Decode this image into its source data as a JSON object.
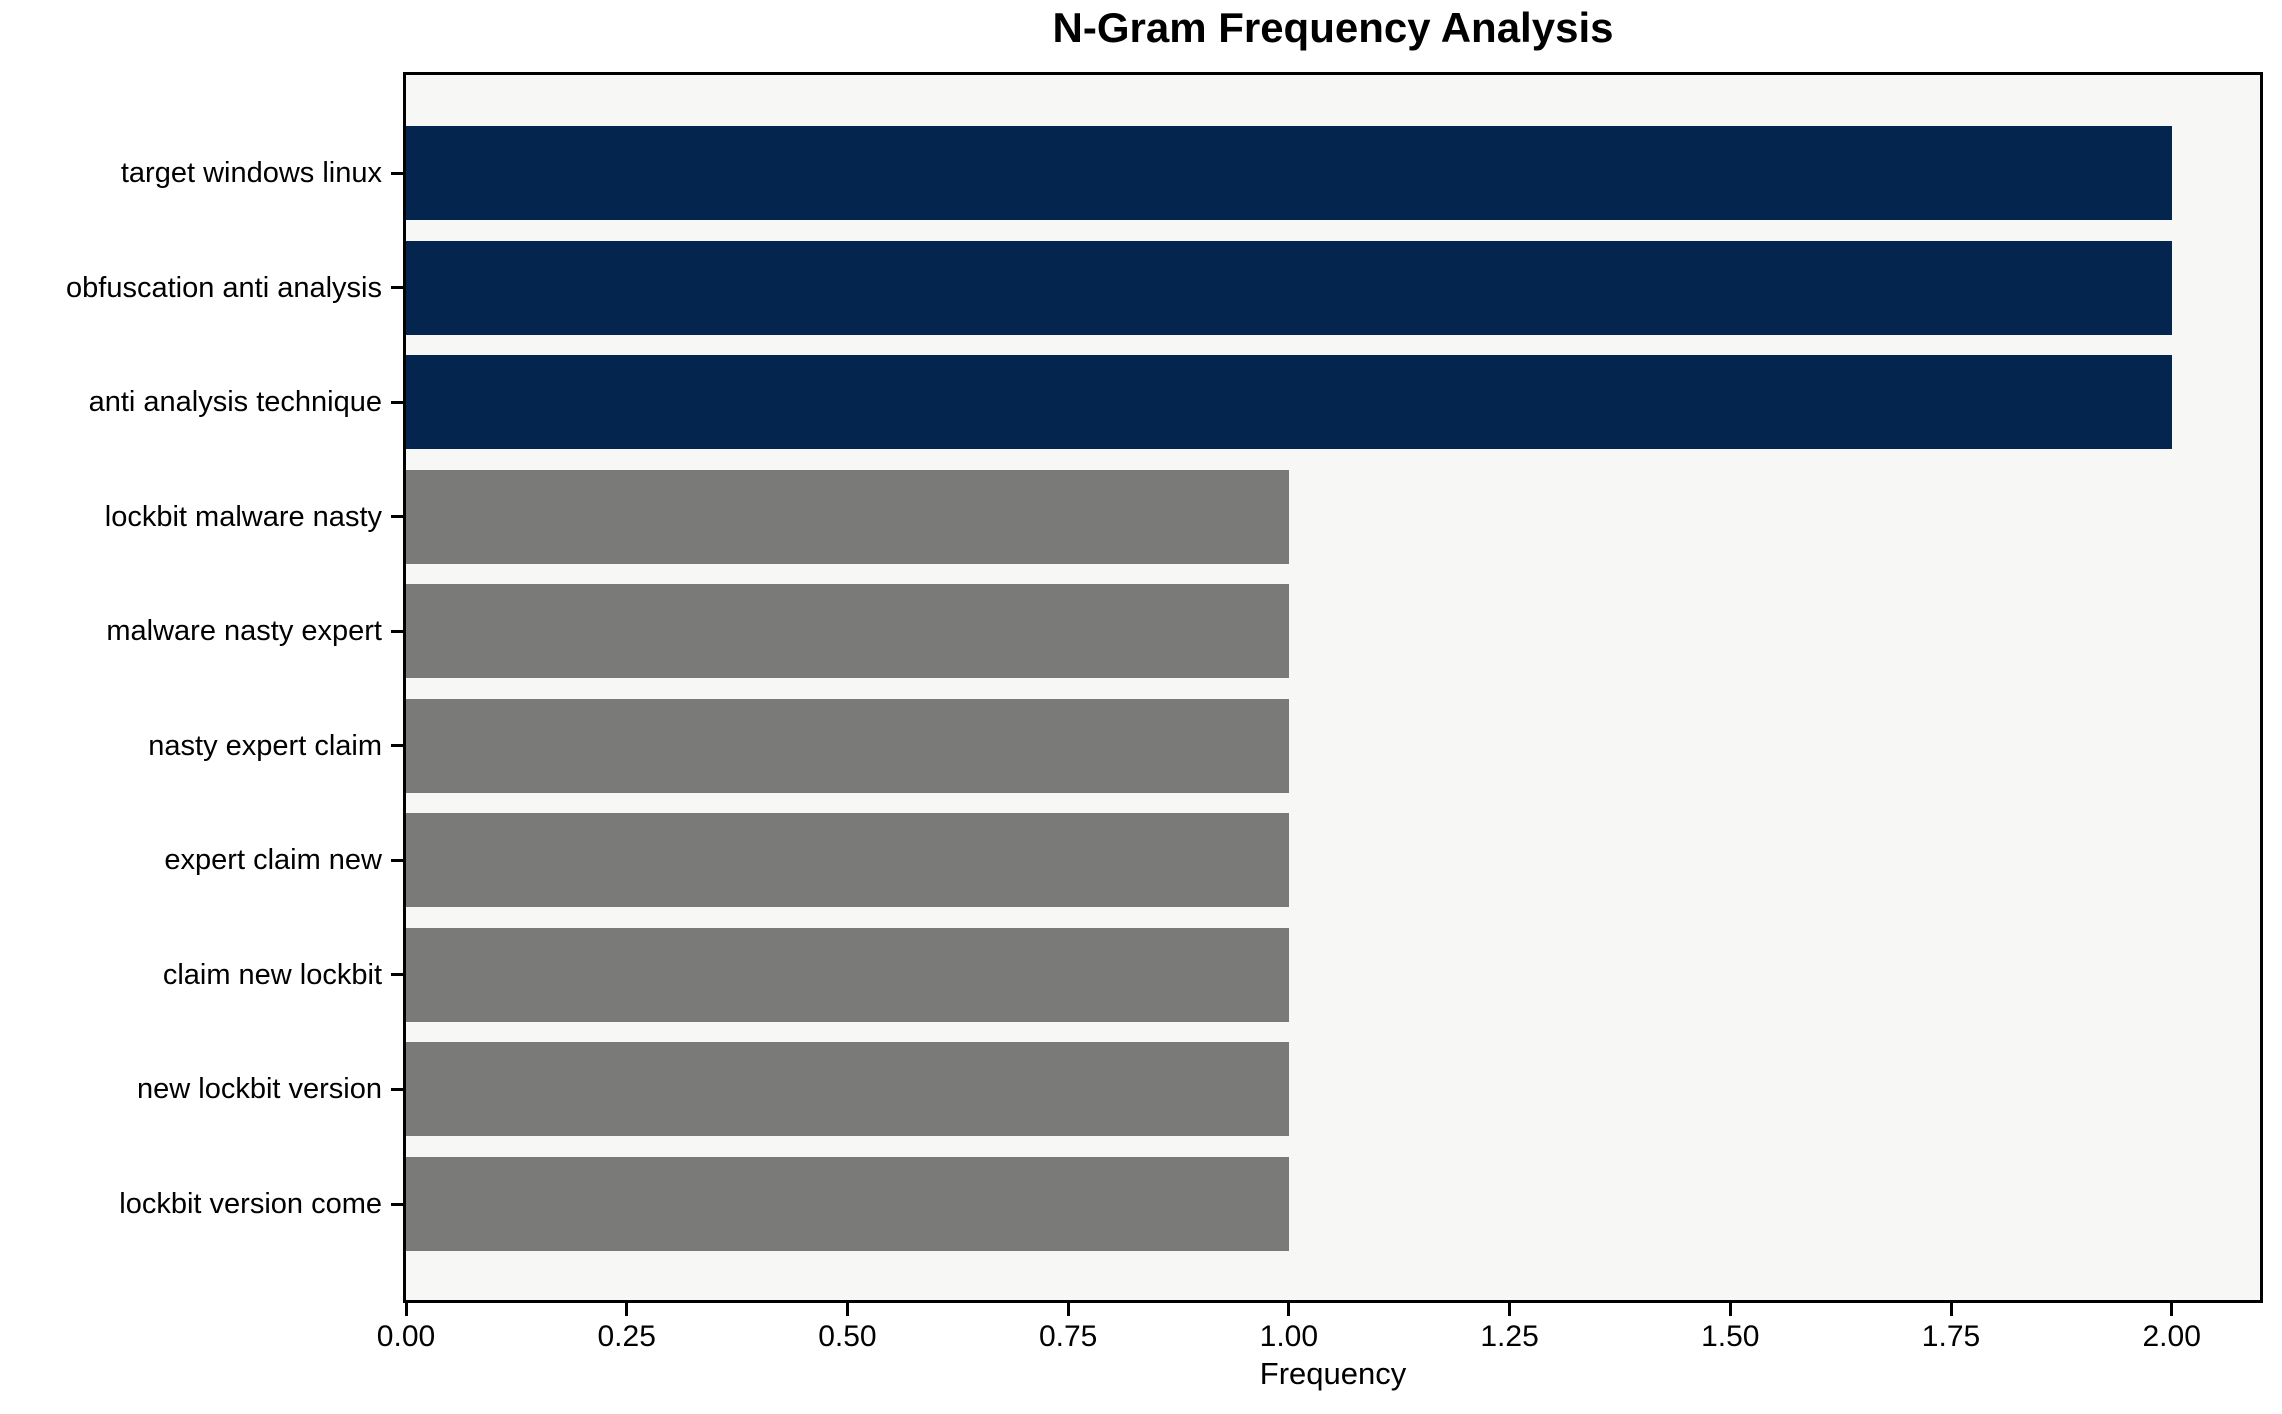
{
  "chart_data": {
    "type": "bar",
    "orientation": "horizontal",
    "title": "N-Gram Frequency Analysis",
    "xlabel": "Frequency",
    "ylabel": "",
    "categories": [
      "target windows linux",
      "obfuscation anti analysis",
      "anti analysis technique",
      "lockbit malware nasty",
      "malware nasty expert",
      "nasty expert claim",
      "expert claim new",
      "claim new lockbit",
      "new lockbit version",
      "lockbit version come"
    ],
    "values": [
      2,
      2,
      2,
      1,
      1,
      1,
      1,
      1,
      1,
      1
    ],
    "bar_colors": [
      "#03254e",
      "#03254e",
      "#03254e",
      "#7a7a78",
      "#7a7a78",
      "#7a7a78",
      "#7a7a78",
      "#7a7a78",
      "#7a7a78",
      "#7a7a78"
    ],
    "xlim": [
      0,
      2.1
    ],
    "xticks": [
      0,
      0.25,
      0.5,
      0.75,
      1.0,
      1.25,
      1.5,
      1.75,
      2.0
    ],
    "xtick_labels": [
      "0.00",
      "0.25",
      "0.50",
      "0.75",
      "1.00",
      "1.25",
      "1.50",
      "1.75",
      "2.00"
    ],
    "grid": false,
    "legend": null,
    "colors": {
      "highlight_bar": "#03254e",
      "default_bar": "#7a7a78",
      "plot_background": "#f7f7f6",
      "figure_background": "#ffffff",
      "axis": "#000000",
      "text": "#000000"
    }
  }
}
